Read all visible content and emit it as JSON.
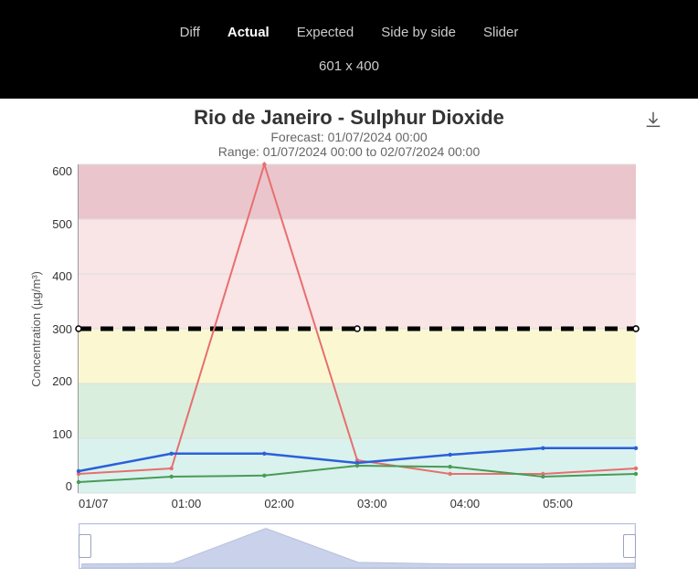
{
  "header": {
    "tabs": [
      "Diff",
      "Actual",
      "Expected",
      "Side by side",
      "Slider"
    ],
    "active_tab_index": 1,
    "dimensions_text": "601 x 400"
  },
  "chart": {
    "type": "line",
    "title": "Rio de Janeiro - Sulphur Dioxide",
    "title_fontsize": 22,
    "subtitle1": "Forecast: 01/07/2024 00:00",
    "subtitle2": "Range: 01/07/2024 00:00 to 02/07/2024 00:00",
    "ylabel": "Concentration (µg/m³)",
    "label_fontsize": 13,
    "ylim": [
      0,
      600
    ],
    "ytick_step": 100,
    "y_ticks": [
      600,
      500,
      400,
      300,
      200,
      100,
      0
    ],
    "x_ticks": [
      "01/07",
      "01:00",
      "02:00",
      "03:00",
      "04:00",
      "05:00",
      ""
    ],
    "background_color": "#ffffff",
    "grid_color": "#dddddd",
    "bands": [
      {
        "from": 0,
        "to": 100,
        "color": "#d9f2ee"
      },
      {
        "from": 100,
        "to": 200,
        "color": "#daeedd"
      },
      {
        "from": 200,
        "to": 300,
        "color": "#fbf8d1"
      },
      {
        "from": 300,
        "to": 500,
        "color": "#f9e4e6"
      },
      {
        "from": 500,
        "to": 600,
        "color": "#eac5cc"
      }
    ],
    "threshold_line": {
      "value": 300,
      "color": "#000000",
      "dash": "14,10",
      "width": 5,
      "marker": "circle"
    },
    "series": [
      {
        "name": "red",
        "color": "#e76f6f",
        "width": 2,
        "marker": "circle",
        "values": [
          35,
          45,
          600,
          60,
          35,
          35,
          45
        ]
      },
      {
        "name": "blue",
        "color": "#2b5fd9",
        "width": 2.5,
        "marker": "circle",
        "values": [
          40,
          72,
          72,
          55,
          70,
          82,
          82
        ]
      },
      {
        "name": "green",
        "color": "#4a9a56",
        "width": 2,
        "marker": "circle",
        "values": [
          20,
          30,
          32,
          50,
          48,
          30,
          35
        ]
      }
    ],
    "range_overview": {
      "fill_color": "#c9d2ea",
      "stroke_color": "#b8c0d8",
      "values": [
        35,
        45,
        600,
        60,
        35,
        35,
        45
      ],
      "max": 600
    }
  }
}
